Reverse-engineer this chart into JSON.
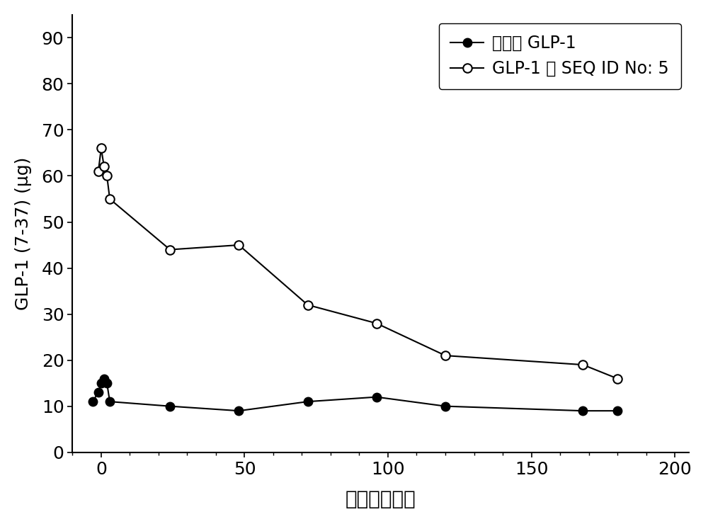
{
  "series1_label": "单独的 GLP-1",
  "series2_label": "GLP-1 和 SEQ ID No: 5",
  "series1_x": [
    -3,
    -1,
    0,
    1,
    2,
    3,
    24,
    48,
    72,
    96,
    120,
    168,
    180
  ],
  "series1_y": [
    11,
    13,
    15,
    16,
    15,
    11,
    10,
    9,
    11,
    12,
    10,
    9,
    9
  ],
  "series2_x": [
    -1,
    0,
    1,
    2,
    3,
    24,
    48,
    72,
    96,
    120,
    168,
    180
  ],
  "series2_y": [
    61,
    66,
    62,
    60,
    55,
    44,
    45,
    32,
    28,
    21,
    19,
    16
  ],
  "xlabel": "时间（小时）",
  "ylabel": "GLP-1 (7-37) (μg)",
  "xlim": [
    -10,
    205
  ],
  "ylim": [
    0,
    95
  ],
  "xticks": [
    0,
    50,
    100,
    150,
    200
  ],
  "yticks": [
    0,
    10,
    20,
    30,
    40,
    50,
    60,
    70,
    80,
    90
  ],
  "series1_color": "black",
  "series2_color": "black",
  "linewidth": 1.5,
  "markersize": 9,
  "background_color": "#ffffff",
  "legend_loc": "upper right",
  "title_fontsize": 18,
  "label_fontsize": 20,
  "tick_fontsize": 18,
  "legend_fontsize": 17
}
